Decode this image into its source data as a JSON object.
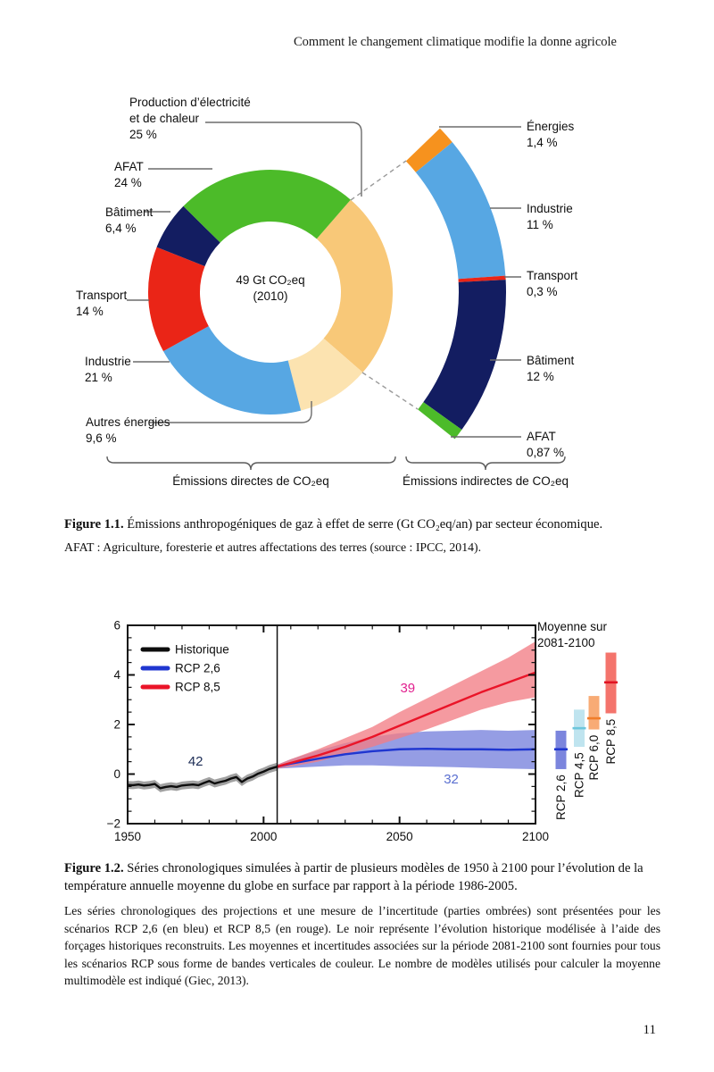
{
  "page": {
    "header": "Comment le changement climatique modifie la donne agricole",
    "page_number": "11"
  },
  "figure1": {
    "center": {
      "line1": "49 Gt CO₂eq",
      "line2": "(2010)"
    },
    "start_angle_deg": 41,
    "slices": [
      {
        "id": "production",
        "label_line1": "Production d’électricité",
        "label_line2": "et de chaleur",
        "value_label": "25 %",
        "value": 25,
        "color": "#f8c878"
      },
      {
        "id": "autres-energies",
        "label": "Autres énergies",
        "value_label": "9,6 %",
        "value": 9.6,
        "color": "#fce3b0"
      },
      {
        "id": "industrie",
        "label": "Industrie",
        "value_label": "21 %",
        "value": 21,
        "color": "#57a7e3"
      },
      {
        "id": "transport",
        "label": "Transport",
        "value_label": "14 %",
        "value": 14,
        "color": "#ea2517"
      },
      {
        "id": "batiment",
        "label": "Bâtiment",
        "value_label": "6,4 %",
        "value": 6.4,
        "color": "#131d61"
      },
      {
        "id": "afat",
        "label": "AFAT",
        "value_label": "24 %",
        "value": 24,
        "color": "#4cbb29"
      }
    ],
    "indirect_arc": {
      "start_angle_deg": 46,
      "end_angle_deg": 128.5,
      "segments": [
        {
          "id": "energies",
          "label": "Énergies",
          "value_label": "1,4 %",
          "value": 1.4,
          "color": "#f6921e"
        },
        {
          "id": "industrie2",
          "label": "Industrie",
          "value_label": "11 %",
          "value": 11,
          "color": "#57a7e3"
        },
        {
          "id": "transport2",
          "label": "Transport",
          "value_label": "0,3 %",
          "value": 0.3,
          "color": "#ea2517"
        },
        {
          "id": "batiment2",
          "label": "Bâtiment",
          "value_label": "12 %",
          "value": 12,
          "color": "#131d61"
        },
        {
          "id": "afat2",
          "label": "AFAT",
          "value_label": "0,87 %",
          "value": 0.87,
          "color": "#4cbb29"
        }
      ]
    },
    "direct_label": "Émissions directes de CO₂eq",
    "indirect_label": "Émissions indirectes de CO₂eq",
    "caption_bold": "Figure 1.1.",
    "caption_text": " Émissions anthropogéniques de gaz à effet de serre (Gt CO₂eq/an) par secteur économique.",
    "caption_sub": "AFAT : Agriculture, foresterie et autres affectations des terres (source : IPCC, 2014)."
  },
  "figure2": {
    "caption_bold": "Figure 1.2.",
    "caption_text": " Séries chronologiques simulées à partir de plusieurs modèles de 1950 à 2100 pour l’évolution de la température annuelle moyenne du globe en surface par rapport à la période 1986-2005.",
    "caption_para": "Les séries chronologiques des projections et une mesure de l’incertitude (parties ombrées) sont présentées pour les scénarios RCP 2,6 (en bleu) et RCP 8,5 (en rouge). Le noir représente l’évolution historique modélisée à l’aide des forçages historiques reconstruits. Les moyennes et incertitudes associées sur la période 2081-2100 sont fournies pour tous les scénarios RCP sous forme de bandes verticales de couleur. Le nombre de modèles utilisés pour calculer la moyenne multimodèle est indiqué (Giec, 2013)."
  },
  "chart_data": {
    "type": "line",
    "title": "",
    "xlabel": "",
    "ylabel": "",
    "xlim": [
      1950,
      2100
    ],
    "ylim": [
      -2,
      6
    ],
    "xticks": [
      1950,
      2000,
      2050,
      2100
    ],
    "yticks": [
      -2,
      0,
      2,
      4,
      6
    ],
    "divider_year": 2005,
    "grid": false,
    "legend_position": "top-left",
    "legend": [
      {
        "label": "Historique",
        "color": "#0d0d0d"
      },
      {
        "label": "RCP 2,6",
        "color": "#1f36d0"
      },
      {
        "label": "RCP 8,5",
        "color": "#ea1428"
      }
    ],
    "series": [
      {
        "name": "Historique",
        "line_color": "#0d0d0d",
        "band_color": "#909090",
        "band_opacity": 0.85,
        "band_halfwidth": 0.16,
        "model_count": 42,
        "x": [
          1950,
          1952,
          1954,
          1956,
          1958,
          1960,
          1962,
          1964,
          1966,
          1968,
          1970,
          1972,
          1974,
          1976,
          1978,
          1980,
          1982,
          1984,
          1986,
          1988,
          1990,
          1992,
          1994,
          1996,
          1998,
          2000,
          2002,
          2005
        ],
        "y": [
          -0.44,
          -0.45,
          -0.42,
          -0.46,
          -0.44,
          -0.4,
          -0.57,
          -0.52,
          -0.49,
          -0.52,
          -0.46,
          -0.44,
          -0.42,
          -0.45,
          -0.36,
          -0.28,
          -0.38,
          -0.32,
          -0.27,
          -0.18,
          -0.12,
          -0.32,
          -0.18,
          -0.1,
          0.02,
          0.1,
          0.2,
          0.3
        ]
      },
      {
        "name": "RCP 2,6",
        "line_color": "#1f36d0",
        "band_color": "#7b85dd",
        "band_opacity": 0.8,
        "model_count": 32,
        "x": [
          2005,
          2010,
          2020,
          2030,
          2040,
          2050,
          2060,
          2070,
          2080,
          2090,
          2100
        ],
        "y": [
          0.3,
          0.42,
          0.62,
          0.8,
          0.92,
          1.0,
          1.02,
          1.0,
          1.0,
          0.98,
          1.0
        ],
        "band_low": [
          0.22,
          0.25,
          0.3,
          0.35,
          0.35,
          0.32,
          0.3,
          0.28,
          0.25,
          0.22,
          0.2
        ],
        "band_high": [
          0.38,
          0.6,
          0.95,
          1.25,
          1.5,
          1.65,
          1.72,
          1.75,
          1.78,
          1.75,
          1.78
        ]
      },
      {
        "name": "RCP 8,5",
        "line_color": "#ea1428",
        "band_color": "#f27d85",
        "band_opacity": 0.78,
        "model_count": 39,
        "x": [
          2005,
          2010,
          2020,
          2030,
          2040,
          2050,
          2060,
          2070,
          2080,
          2090,
          2100
        ],
        "y": [
          0.3,
          0.45,
          0.75,
          1.1,
          1.5,
          1.95,
          2.4,
          2.85,
          3.3,
          3.7,
          4.1
        ],
        "band_low": [
          0.22,
          0.3,
          0.5,
          0.8,
          1.1,
          1.45,
          1.8,
          2.2,
          2.6,
          2.9,
          3.1
        ],
        "band_high": [
          0.38,
          0.6,
          1.0,
          1.45,
          1.9,
          2.5,
          3.05,
          3.6,
          4.15,
          4.7,
          5.35
        ]
      }
    ],
    "annotations": [
      {
        "text": "42",
        "x": 1975,
        "y": 0.52,
        "color": "#1c2c55"
      },
      {
        "text": "39",
        "x": 2053,
        "y": 3.48,
        "color": "#e1218f"
      },
      {
        "text": "32",
        "x": 2069,
        "y": -0.2,
        "color": "#5a6fd0"
      }
    ],
    "right_panel": {
      "title_line1": "Moyenne sur",
      "title_line2": "2081-2100",
      "bars": [
        {
          "label": "RCP 2,6",
          "low": 0.2,
          "high": 1.75,
          "mean": 1.0,
          "fill": "#7b85dd",
          "mean_color": "#1f36d0"
        },
        {
          "label": "RCP 4,5",
          "low": 1.1,
          "high": 2.6,
          "mean": 1.85,
          "fill": "#bfe4ef",
          "mean_color": "#6cc6dc"
        },
        {
          "label": "RCP 6,0",
          "low": 1.8,
          "high": 3.15,
          "mean": 2.25,
          "fill": "#f8ab75",
          "mean_color": "#f07d2a"
        },
        {
          "label": "RCP 8,5",
          "low": 2.45,
          "high": 4.9,
          "mean": 3.7,
          "fill": "#f4746c",
          "mean_color": "#e01424"
        }
      ]
    }
  }
}
